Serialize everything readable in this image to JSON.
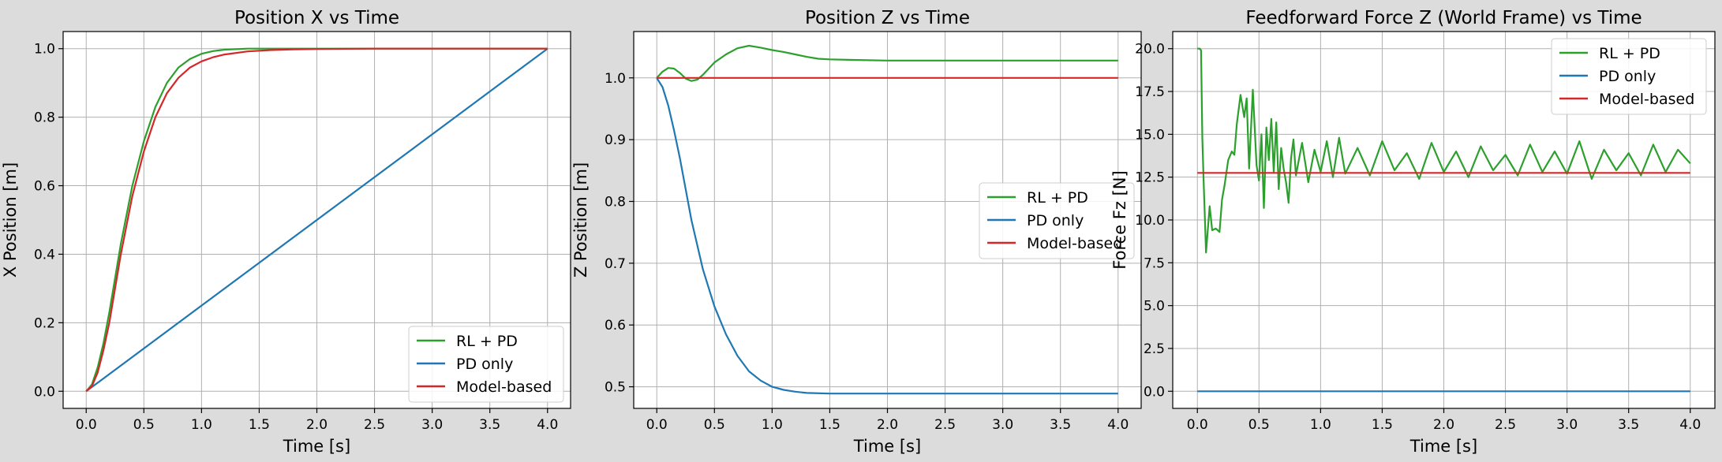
{
  "colors": {
    "figure_bg": "#dcdcdc",
    "axes_bg": "#ffffff",
    "grid": "#b0b0b0",
    "rl_pd": "#2ca02c",
    "pd_only": "#1f77b4",
    "model_based": "#d62728"
  },
  "chart_data": [
    {
      "type": "line",
      "title": "Position X vs Time",
      "xlabel": "Time [s]",
      "ylabel": "X Position [m]",
      "xlim": [
        -0.2,
        4.2
      ],
      "ylim": [
        -0.05,
        1.05
      ],
      "xticks": [
        0.0,
        0.5,
        1.0,
        1.5,
        2.0,
        2.5,
        3.0,
        3.5,
        4.0
      ],
      "xtick_labels": [
        "0.0",
        "0.5",
        "1.0",
        "1.5",
        "2.0",
        "2.5",
        "3.0",
        "3.5",
        "4.0"
      ],
      "yticks": [
        0.0,
        0.2,
        0.4,
        0.6,
        0.8,
        1.0
      ],
      "ytick_labels": [
        "0.0",
        "0.2",
        "0.4",
        "0.6",
        "0.8",
        "1.0"
      ],
      "grid": true,
      "legend": "lower-right",
      "series": [
        {
          "name": "RL + PD",
          "color": "#2ca02c",
          "x": [
            0,
            0.05,
            0.1,
            0.15,
            0.2,
            0.25,
            0.3,
            0.4,
            0.5,
            0.6,
            0.7,
            0.8,
            0.9,
            1.0,
            1.1,
            1.2,
            1.4,
            1.6,
            2.0,
            3.0,
            4.0
          ],
          "y": [
            0.0,
            0.02,
            0.07,
            0.14,
            0.23,
            0.33,
            0.43,
            0.6,
            0.73,
            0.83,
            0.9,
            0.945,
            0.97,
            0.985,
            0.993,
            0.997,
            1.0,
            1.0,
            1.0,
            1.0,
            1.0
          ]
        },
        {
          "name": "PD only",
          "color": "#1f77b4",
          "x": [
            0,
            4.0
          ],
          "y": [
            0.0,
            1.0
          ],
          "hidden_behind_others": true
        },
        {
          "name": "Model-based",
          "color": "#d62728",
          "x": [
            0,
            0.05,
            0.1,
            0.15,
            0.2,
            0.25,
            0.3,
            0.4,
            0.5,
            0.6,
            0.7,
            0.8,
            0.9,
            1.0,
            1.1,
            1.2,
            1.4,
            1.6,
            1.8,
            2.0,
            2.5,
            3.0,
            4.0
          ],
          "y": [
            0.0,
            0.015,
            0.055,
            0.12,
            0.2,
            0.3,
            0.4,
            0.57,
            0.7,
            0.8,
            0.87,
            0.915,
            0.945,
            0.963,
            0.975,
            0.983,
            0.992,
            0.996,
            0.998,
            0.999,
            1.0,
            1.0,
            1.0
          ]
        }
      ]
    },
    {
      "type": "line",
      "title": "Position Z vs Time",
      "xlabel": "Time [s]",
      "ylabel": "Z Position [m]",
      "xlim": [
        -0.2,
        4.2
      ],
      "ylim": [
        0.465,
        1.075
      ],
      "xticks": [
        0.0,
        0.5,
        1.0,
        1.5,
        2.0,
        2.5,
        3.0,
        3.5,
        4.0
      ],
      "xtick_labels": [
        "0.0",
        "0.5",
        "1.0",
        "1.5",
        "2.0",
        "2.5",
        "3.0",
        "3.5",
        "4.0"
      ],
      "yticks": [
        0.5,
        0.6,
        0.7,
        0.8,
        0.9,
        1.0
      ],
      "ytick_labels": [
        "0.5",
        "0.6",
        "0.7",
        "0.8",
        "0.9",
        "1.0"
      ],
      "grid": true,
      "legend": "center-right",
      "series": [
        {
          "name": "RL + PD",
          "color": "#2ca02c",
          "x": [
            0,
            0.05,
            0.1,
            0.15,
            0.2,
            0.25,
            0.3,
            0.35,
            0.4,
            0.5,
            0.6,
            0.7,
            0.8,
            0.9,
            1.0,
            1.1,
            1.2,
            1.3,
            1.4,
            1.5,
            1.7,
            2.0,
            2.5,
            3.0,
            3.5,
            4.0
          ],
          "y": [
            1.0,
            1.01,
            1.016,
            1.015,
            1.008,
            0.999,
            0.995,
            0.997,
            1.005,
            1.025,
            1.038,
            1.048,
            1.052,
            1.049,
            1.045,
            1.042,
            1.038,
            1.034,
            1.031,
            1.03,
            1.029,
            1.028,
            1.028,
            1.028,
            1.028,
            1.028
          ]
        },
        {
          "name": "PD only",
          "color": "#1f77b4",
          "x": [
            0,
            0.05,
            0.1,
            0.15,
            0.2,
            0.3,
            0.4,
            0.5,
            0.6,
            0.7,
            0.8,
            0.9,
            1.0,
            1.1,
            1.2,
            1.3,
            1.5,
            1.7,
            2.0,
            3.0,
            4.0
          ],
          "y": [
            1.0,
            0.985,
            0.955,
            0.915,
            0.87,
            0.77,
            0.69,
            0.63,
            0.585,
            0.55,
            0.525,
            0.51,
            0.5,
            0.495,
            0.492,
            0.49,
            0.489,
            0.489,
            0.489,
            0.489,
            0.489
          ]
        },
        {
          "name": "Model-based",
          "color": "#d62728",
          "x": [
            0,
            4.0
          ],
          "y": [
            1.0,
            1.0
          ]
        }
      ]
    },
    {
      "type": "line",
      "title": "Feedforward Force Z (World Frame) vs Time",
      "xlabel": "Time [s]",
      "ylabel": "Force Fz [N]",
      "xlim": [
        -0.2,
        4.2
      ],
      "ylim": [
        -1.0,
        21.0
      ],
      "xticks": [
        0.0,
        0.5,
        1.0,
        1.5,
        2.0,
        2.5,
        3.0,
        3.5,
        4.0
      ],
      "xtick_labels": [
        "0.0",
        "0.5",
        "1.0",
        "1.5",
        "2.0",
        "2.5",
        "3.0",
        "3.5",
        "4.0"
      ],
      "yticks": [
        0.0,
        2.5,
        5.0,
        7.5,
        10.0,
        12.5,
        15.0,
        17.5,
        20.0
      ],
      "ytick_labels": [
        "0.0",
        "2.5",
        "5.0",
        "7.5",
        "10.0",
        "12.5",
        "15.0",
        "17.5",
        "20.0"
      ],
      "grid": true,
      "legend": "top-right",
      "series": [
        {
          "name": "RL + PD",
          "color": "#2ca02c",
          "x": [
            0,
            0.02,
            0.03,
            0.04,
            0.05,
            0.07,
            0.1,
            0.12,
            0.15,
            0.18,
            0.2,
            0.22,
            0.25,
            0.28,
            0.3,
            0.32,
            0.35,
            0.38,
            0.4,
            0.42,
            0.45,
            0.48,
            0.5,
            0.52,
            0.54,
            0.56,
            0.58,
            0.6,
            0.62,
            0.64,
            0.66,
            0.68,
            0.7,
            0.72,
            0.74,
            0.76,
            0.78,
            0.8,
            0.85,
            0.9,
            0.95,
            1.0,
            1.05,
            1.1,
            1.15,
            1.2,
            1.3,
            1.4,
            1.5,
            1.6,
            1.7,
            1.8,
            1.9,
            2.0,
            2.1,
            2.2,
            2.3,
            2.4,
            2.5,
            2.6,
            2.7,
            2.8,
            2.9,
            3.0,
            3.1,
            3.2,
            3.3,
            3.4,
            3.5,
            3.6,
            3.7,
            3.8,
            3.9,
            4.0
          ],
          "y": [
            20.0,
            20.0,
            19.9,
            14.8,
            12.5,
            8.1,
            10.8,
            9.4,
            9.5,
            9.3,
            11.2,
            12.0,
            13.5,
            14.0,
            13.8,
            15.6,
            17.3,
            16.0,
            17.1,
            13.0,
            17.6,
            13.2,
            12.3,
            15.0,
            10.7,
            15.4,
            13.5,
            15.9,
            12.8,
            15.7,
            11.8,
            14.2,
            13.0,
            12.2,
            11.0,
            13.6,
            14.7,
            12.6,
            14.5,
            12.2,
            14.1,
            12.8,
            14.6,
            12.5,
            14.8,
            12.7,
            14.2,
            12.6,
            14.6,
            12.9,
            13.9,
            12.4,
            14.5,
            12.8,
            14.0,
            12.5,
            14.3,
            12.9,
            13.8,
            12.6,
            14.4,
            12.8,
            14.0,
            12.7,
            14.6,
            12.4,
            14.1,
            12.9,
            13.9,
            12.6,
            14.4,
            12.8,
            14.1,
            13.3
          ]
        },
        {
          "name": "PD only",
          "color": "#1f77b4",
          "x": [
            0,
            4.0
          ],
          "y": [
            0.0,
            0.0
          ]
        },
        {
          "name": "Model-based",
          "color": "#d62728",
          "x": [
            0,
            4.0
          ],
          "y": [
            12.75,
            12.75
          ]
        }
      ]
    }
  ]
}
